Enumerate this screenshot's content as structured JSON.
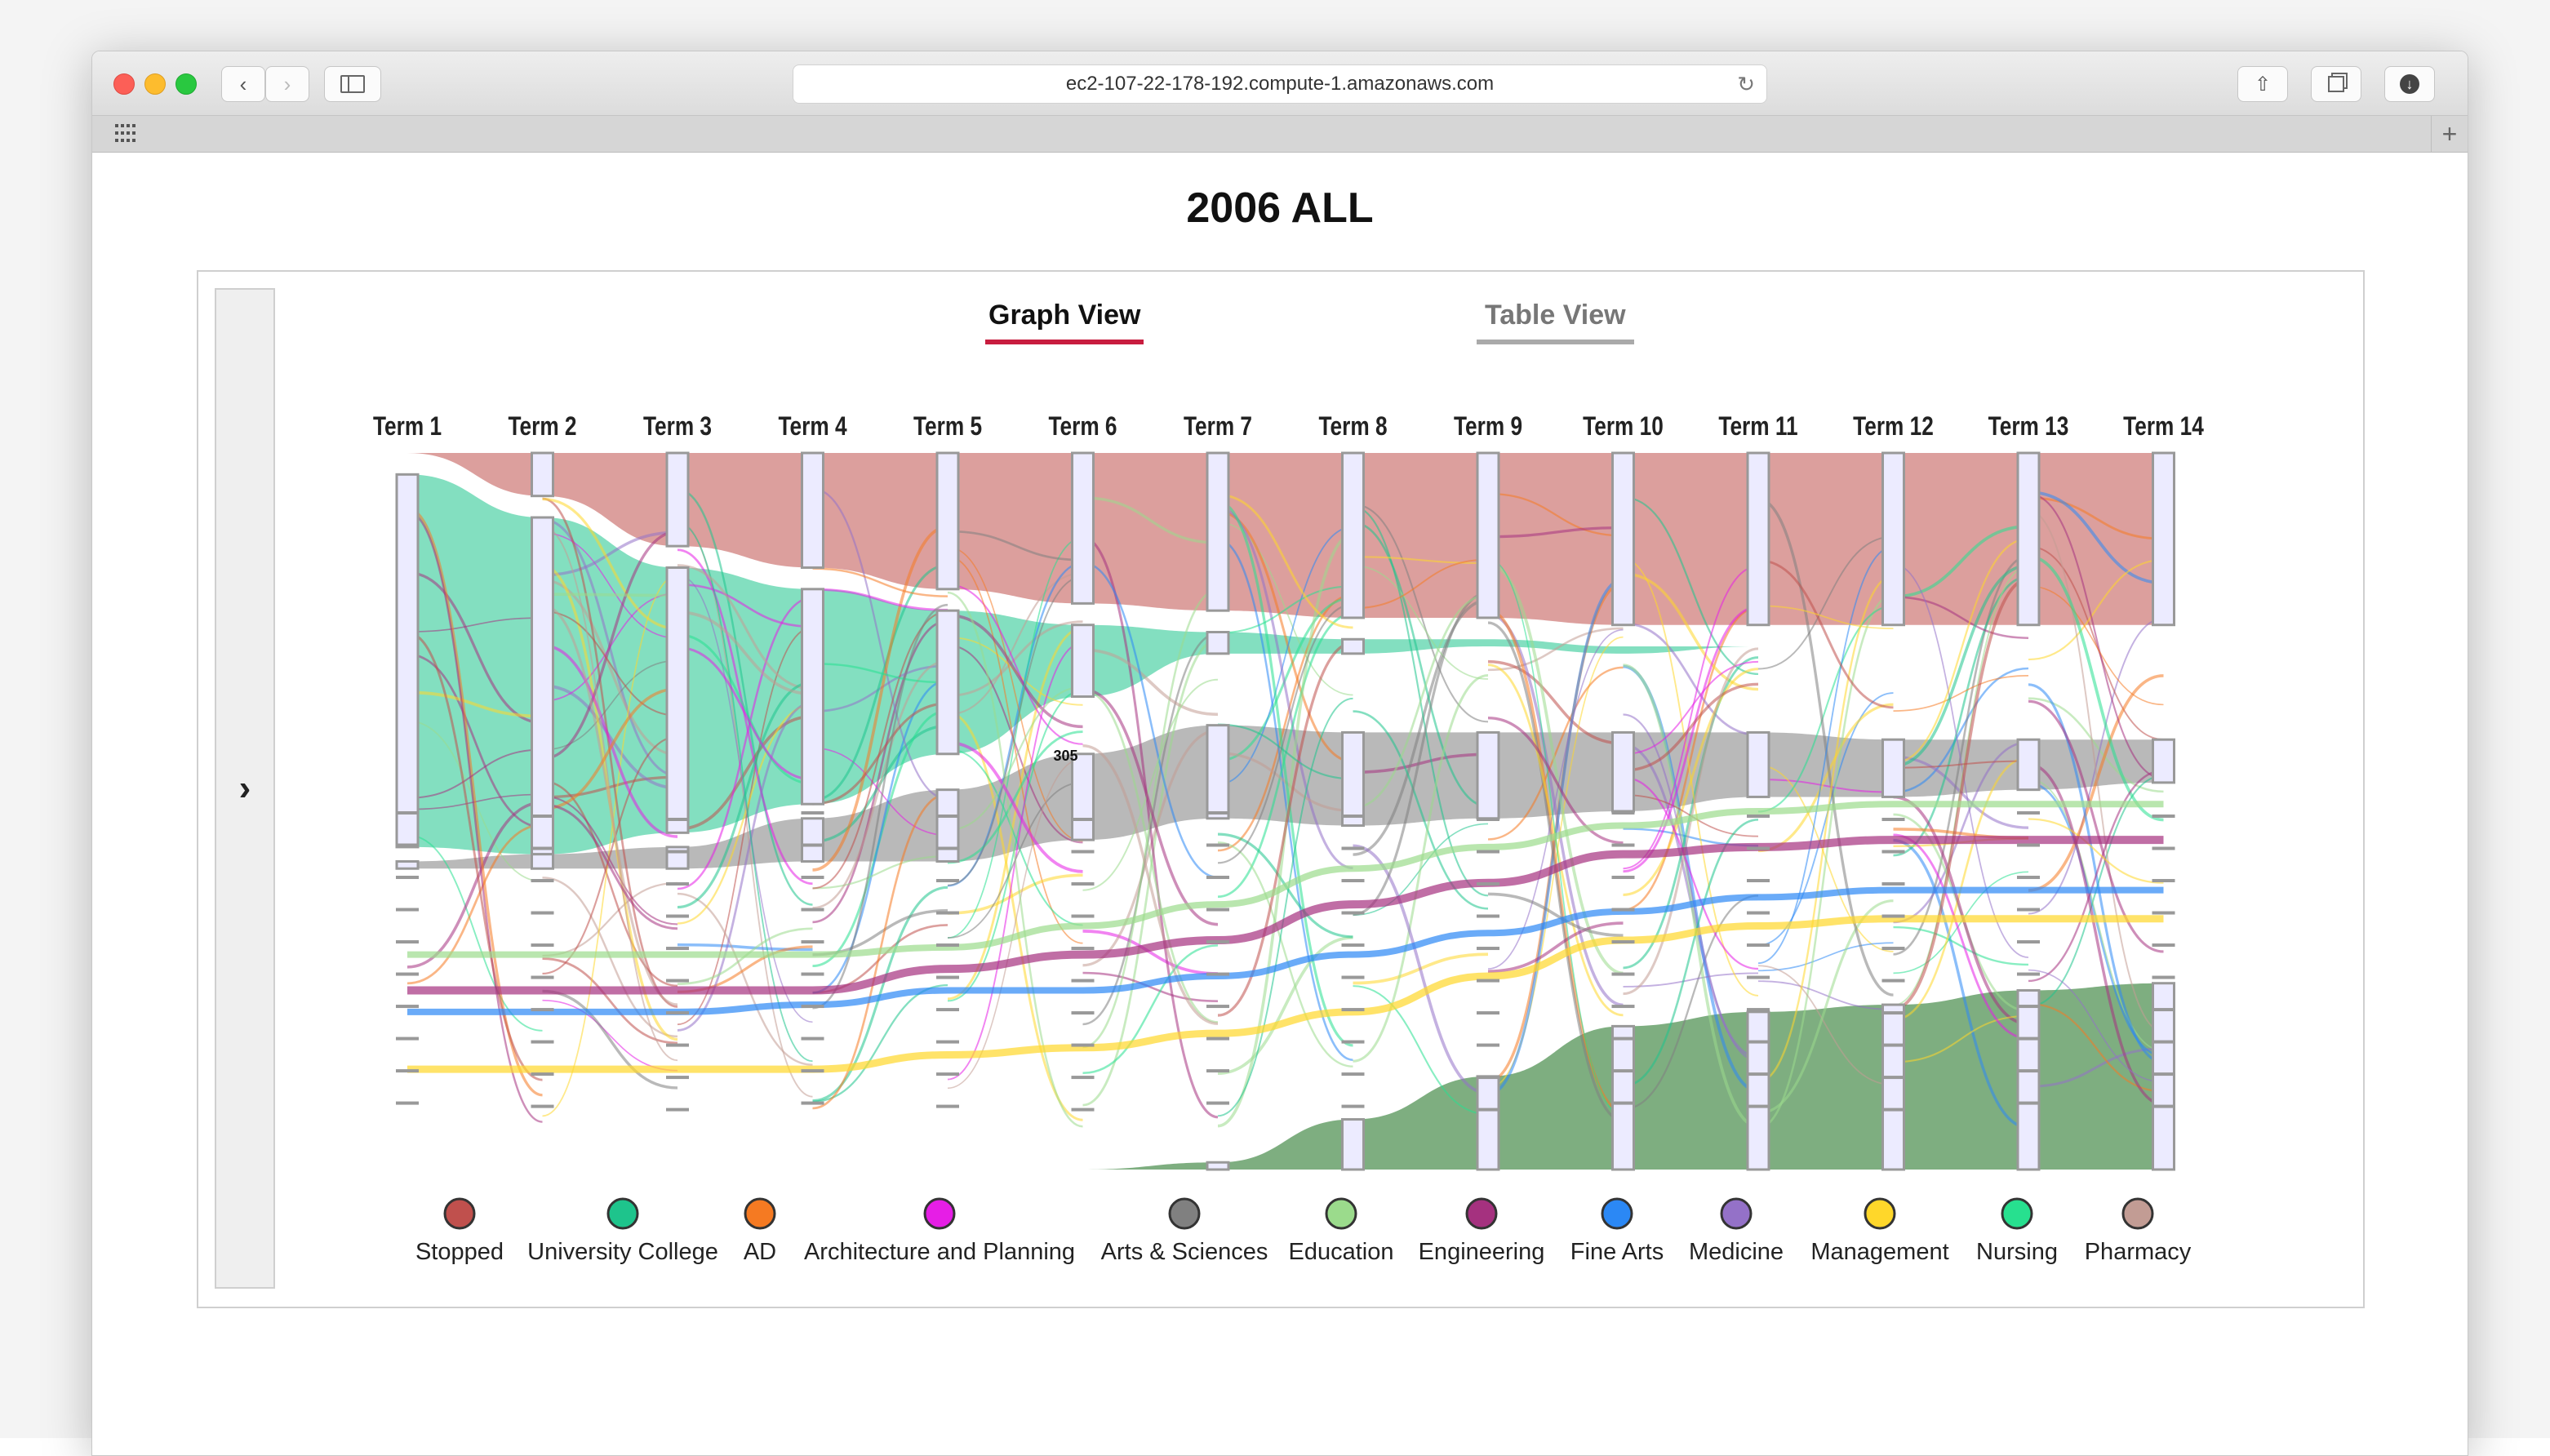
{
  "browser": {
    "url": "ec2-107-22-178-192.compute-1.amazonaws.com"
  },
  "page": {
    "title": "2006 ALL"
  },
  "tabs": {
    "graph": "Graph View",
    "table": "Table View"
  },
  "chart_data": {
    "type": "sankey",
    "terms": [
      "Term 1",
      "Term 2",
      "Term 3",
      "Term 4",
      "Term 5",
      "Term 6",
      "Term 7",
      "Term 8",
      "Term 9",
      "Term 10",
      "Term 11",
      "Term 12",
      "Term 13",
      "Term 14"
    ],
    "annotation": "305",
    "legend": [
      {
        "name": "Stopped",
        "color": "#c0504d"
      },
      {
        "name": "University College",
        "color": "#1ec48c"
      },
      {
        "name": "AD",
        "color": "#f57a22"
      },
      {
        "name": "Architecture and Planning",
        "color": "#e61ee6"
      },
      {
        "name": "Arts & Sciences",
        "color": "#808080"
      },
      {
        "name": "Education",
        "color": "#9bdb8c"
      },
      {
        "name": "Engineering",
        "color": "#a5317f"
      },
      {
        "name": "Fine Arts",
        "color": "#2b88f5"
      },
      {
        "name": "Medicine",
        "color": "#9471c8"
      },
      {
        "name": "Management",
        "color": "#ffd72a"
      },
      {
        "name": "Nursing",
        "color": "#27e08f"
      },
      {
        "name": "Pharmacy",
        "color": "#c29c94"
      }
    ],
    "bands": {
      "stopped": [
        0,
        0.06,
        0.13,
        0.16,
        0.19,
        0.21,
        0.22,
        0.23,
        0.23,
        0.24,
        0.24,
        0.24,
        0.24,
        0.24
      ],
      "university_college": [
        0.52,
        0.47,
        0.37,
        0.3,
        0.2,
        0.1,
        0.03,
        0.02,
        0.01,
        0.01,
        0,
        0,
        0,
        0
      ],
      "arts_sciences": [
        0.01,
        0.02,
        0.03,
        0.06,
        0.1,
        0.12,
        0.13,
        0.13,
        0.12,
        0.11,
        0.09,
        0.08,
        0.07,
        0.06
      ],
      "graduated": [
        0,
        0,
        0,
        0,
        0,
        0,
        0.01,
        0.07,
        0.13,
        0.2,
        0.22,
        0.23,
        0.25,
        0.26
      ]
    }
  }
}
